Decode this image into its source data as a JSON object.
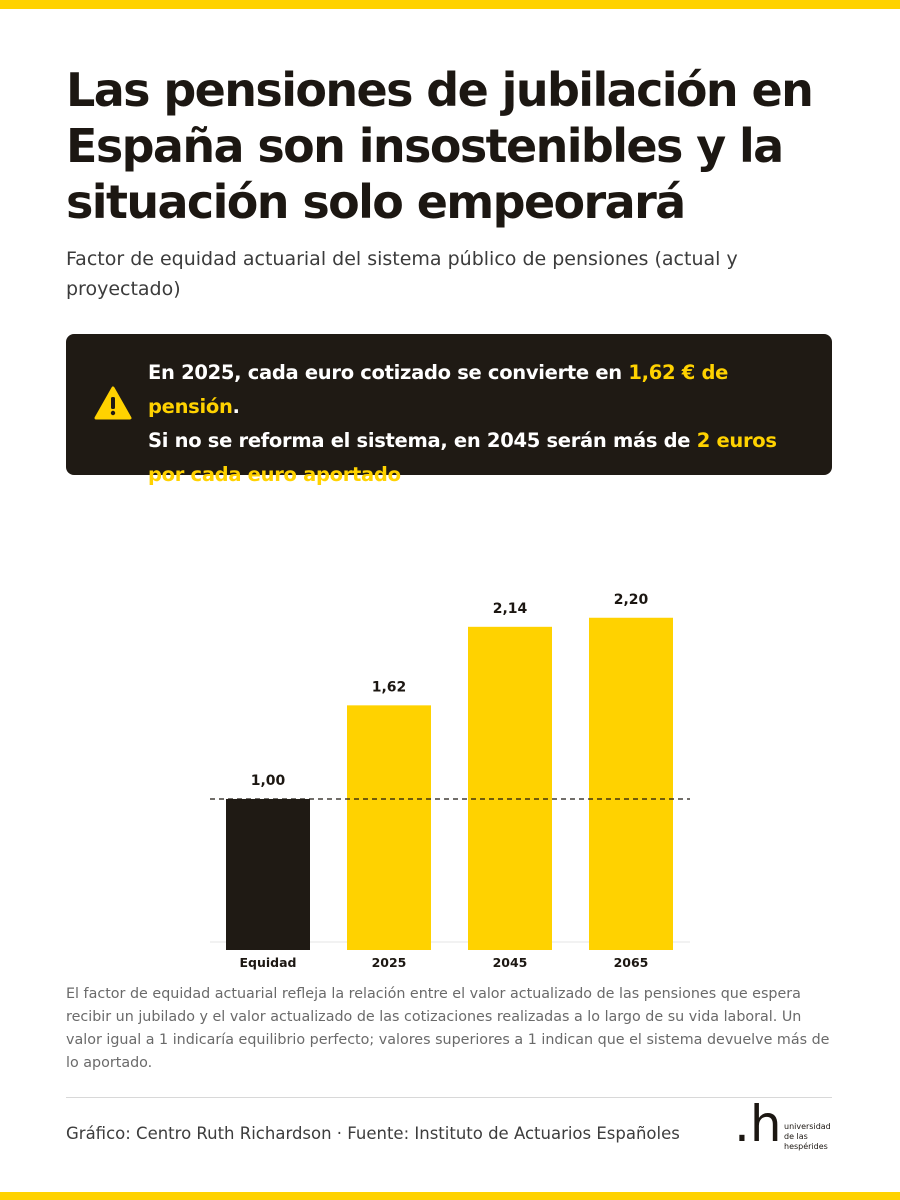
{
  "header": {
    "title": "Las pensiones de jubilación en España son insostenibles y la situación solo empeorará",
    "subtitle": "Factor de equidad actuarial del sistema público de pensiones (actual y proyectado)"
  },
  "callout": {
    "icon": "warning-icon",
    "line1_text": "En 2025, cada euro cotizado se convierte en ",
    "line1_highlight": "1,62 € de pensión",
    "line1_end": ".",
    "line2_text": "Si no se reforma el sistema, en 2045 serán más de ",
    "line2_highlight": "2 euros por cada euro aportado",
    "line2_end": ".",
    "highlight_color": "#ffd200",
    "background_color": "#1f1a14"
  },
  "chart_data": {
    "type": "bar",
    "categories": [
      "Equidad",
      "2025",
      "2045",
      "2065"
    ],
    "values": [
      1.0,
      1.62,
      2.14,
      2.2
    ],
    "value_labels": [
      "1,00",
      "1,62",
      "2,14",
      "2,20"
    ],
    "bar_colors": [
      "#1f1a14",
      "#ffd200",
      "#ffd200",
      "#ffd200"
    ],
    "reference_line": 1.0,
    "ylim": [
      0,
      2.45
    ],
    "grid": false,
    "title": "",
    "xlabel": "",
    "ylabel": ""
  },
  "note": "El factor de equidad actuarial refleja la relación entre el valor actualizado de las pensiones que espera recibir un jubilado y el valor actualizado de las cotizaciones realizadas a lo largo de su vida laboral. Un valor igual a 1 indicaría equilibrio perfecto; valores superiores a 1 indican que el sistema devuelve más de lo aportado.",
  "footer": {
    "credit": "Gráfico: Centro Ruth Richardson · Fuente: Instituto de Actuarios Españoles",
    "logo_mark": ".h",
    "logo_lines": [
      "universidad",
      "de las",
      "hespérides"
    ]
  }
}
